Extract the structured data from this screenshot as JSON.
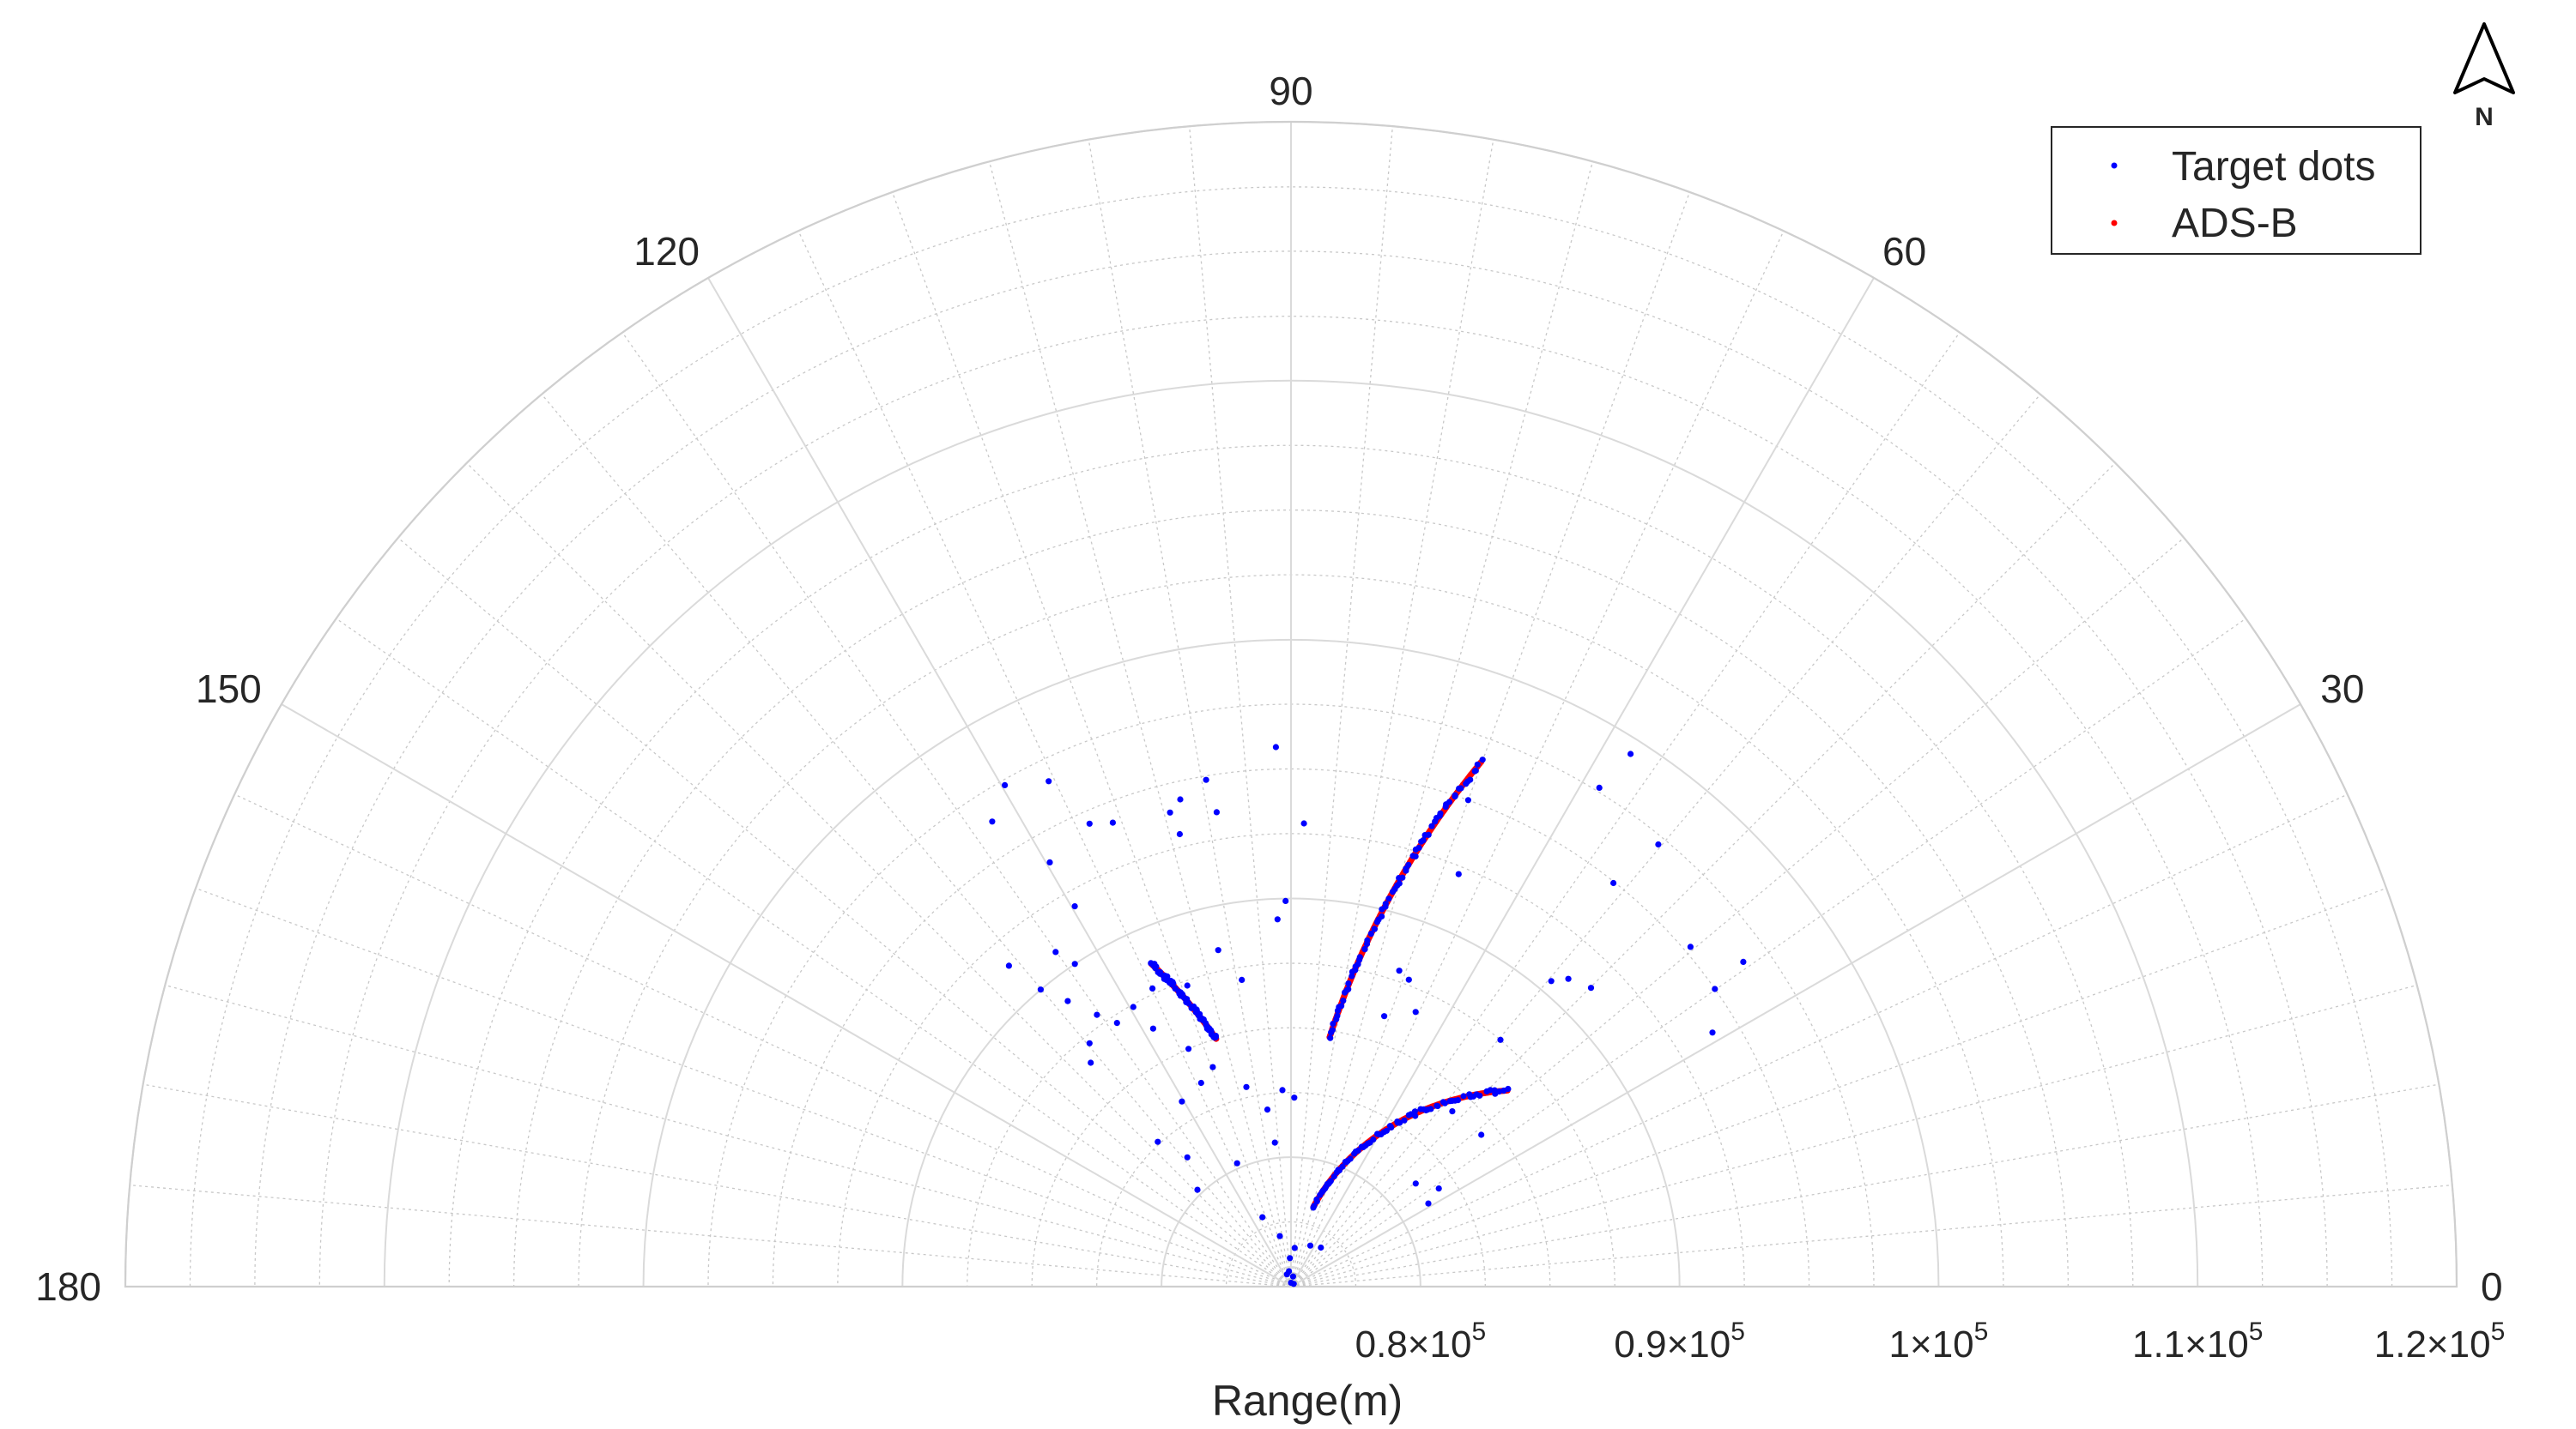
{
  "chart_data": {
    "type": "scatter",
    "coordinate_system": "polar",
    "theta_range_deg": [
      0,
      180
    ],
    "theta_ticks": [
      "0",
      "30",
      "60",
      "90",
      "120",
      "150",
      "180"
    ],
    "rlim": [
      75000,
      120000
    ],
    "r_ticks": [
      {
        "value": 80000,
        "mantissa": "0.8",
        "exponent": "5"
      },
      {
        "value": 90000,
        "mantissa": "0.9",
        "exponent": "5"
      },
      {
        "value": 100000,
        "mantissa": "1",
        "exponent": "5"
      },
      {
        "value": 110000,
        "mantissa": "1.1",
        "exponent": "5"
      },
      {
        "value": 120000,
        "mantissa": "1.2",
        "exponent": "5"
      }
    ],
    "rlabel": "Range(m)",
    "grid": true,
    "legend": {
      "position": "top-right",
      "entries": [
        "Target dots",
        "ADS-B"
      ]
    },
    "north_arrow": "N",
    "series": [
      {
        "name": "Target dots",
        "color": "#0000ff",
        "marker": "dot",
        "points": [
          {
            "theta": 91.6,
            "r": 95850
          },
          {
            "theta": 99.5,
            "r": 94850
          },
          {
            "theta": 102.8,
            "r": 94300
          },
          {
            "theta": 104.3,
            "r": 93900
          },
          {
            "theta": 115.6,
            "r": 96650
          },
          {
            "theta": 119.7,
            "r": 97300
          },
          {
            "theta": 98.9,
            "r": 93550
          },
          {
            "theta": 103.8,
            "r": 93000
          },
          {
            "theta": 113.5,
            "r": 94500
          },
          {
            "theta": 111.0,
            "r": 94200
          },
          {
            "theta": 119.6,
            "r": 93850
          },
          {
            "theta": 122.7,
            "r": 96350
          },
          {
            "theta": 88.4,
            "r": 92900
          },
          {
            "theta": 70.0,
            "r": 95000
          },
          {
            "theta": 58.3,
            "r": 97650
          },
          {
            "theta": 57.5,
            "r": 99400
          },
          {
            "theta": 67.9,
            "r": 92200
          },
          {
            "theta": 50.3,
            "r": 97200
          },
          {
            "theta": 51.4,
            "r": 94950
          },
          {
            "theta": 119.6,
            "r": 91900
          },
          {
            "theta": 90.8,
            "r": 89900
          },
          {
            "theta": 92.1,
            "r": 89200
          },
          {
            "theta": 102.2,
            "r": 88300
          },
          {
            "theta": 99.1,
            "r": 87000
          },
          {
            "theta": 125.1,
            "r": 90800
          },
          {
            "theta": 123.8,
            "r": 90000
          },
          {
            "theta": 131.3,
            "r": 91500
          },
          {
            "theta": 130.1,
            "r": 90000
          },
          {
            "theta": 49.6,
            "r": 90500
          },
          {
            "theta": 48.0,
            "r": 91000
          },
          {
            "theta": 40.4,
            "r": 95250
          },
          {
            "theta": 35.7,
            "r": 96500
          },
          {
            "theta": 35.1,
            "r": 95000
          },
          {
            "theta": 31.1,
            "r": 94000
          },
          {
            "theta": 44.9,
            "r": 91350
          },
          {
            "theta": 49.7,
            "r": 87500
          },
          {
            "theta": 69.0,
            "r": 87700
          },
          {
            "theta": 71.1,
            "r": 87900
          },
          {
            "theta": 65.6,
            "r": 86650
          },
          {
            "theta": 71.0,
            "r": 86050
          },
          {
            "theta": 119.4,
            "r": 87400
          },
          {
            "theta": 123.4,
            "r": 87200
          },
          {
            "theta": 114.9,
            "r": 87700
          },
          {
            "theta": 128.0,
            "r": 89000
          },
          {
            "theta": 118.1,
            "r": 86300
          },
          {
            "theta": 109.0,
            "r": 87300
          },
          {
            "theta": 131.8,
            "r": 86600
          },
          {
            "theta": 129.6,
            "r": 87200
          },
          {
            "theta": 125.5,
            "r": 87900
          },
          {
            "theta": 113.3,
            "r": 85000
          },
          {
            "theta": 109.6,
            "r": 84000
          },
          {
            "theta": 113.8,
            "r": 83600
          },
          {
            "theta": 120.5,
            "r": 83300
          },
          {
            "theta": 102.6,
            "r": 82900
          },
          {
            "theta": 92.5,
            "r": 82600
          },
          {
            "theta": 97.6,
            "r": 81900
          },
          {
            "theta": 89.0,
            "r": 82300
          },
          {
            "theta": 132.6,
            "r": 82600
          },
          {
            "theta": 128.7,
            "r": 81400
          },
          {
            "theta": 113.6,
            "r": 80200
          },
          {
            "theta": 96.4,
            "r": 80600
          },
          {
            "theta": 47.4,
            "r": 84200
          },
          {
            "theta": 38.6,
            "r": 84400
          },
          {
            "theta": 33.6,
            "r": 81850
          },
          {
            "theta": 39.6,
            "r": 81250
          },
          {
            "theta": 31.2,
            "r": 81200
          },
          {
            "theta": 70.5,
            "r": 79200
          },
          {
            "theta": 134.0,
            "r": 80200
          },
          {
            "theta": 112.4,
            "r": 77900
          },
          {
            "theta": 102.4,
            "r": 77000
          },
          {
            "theta": 92.3,
            "r": 76100
          },
          {
            "theta": 84.5,
            "r": 76500
          },
          {
            "theta": 52.6,
            "r": 76900
          },
          {
            "theta": 64.8,
            "r": 76750
          },
          {
            "theta": 97.7,
            "r": 75600
          },
          {
            "theta": 108.1,
            "r": 75500
          },
          {
            "theta": 78.7,
            "r": 75400
          },
          {
            "theta": 45.0,
            "r": 75150
          },
          {
            "theta": 90.0,
            "r": 75150
          }
        ]
      },
      {
        "name": "ADS-B",
        "color": "#ff0000",
        "marker": "dot",
        "tracks": [
          {
            "theta": [
              113.4,
              106.8
            ],
            "r": [
              88600,
              85000
            ]
          },
          {
            "theta": [
              70.1,
              81.2
            ],
            "r": [
              96550,
              84750
            ]
          },
          {
            "theta": [
              42.2,
              74.3
            ],
            "r": [
              86280,
              78200
            ]
          }
        ]
      }
    ]
  }
}
